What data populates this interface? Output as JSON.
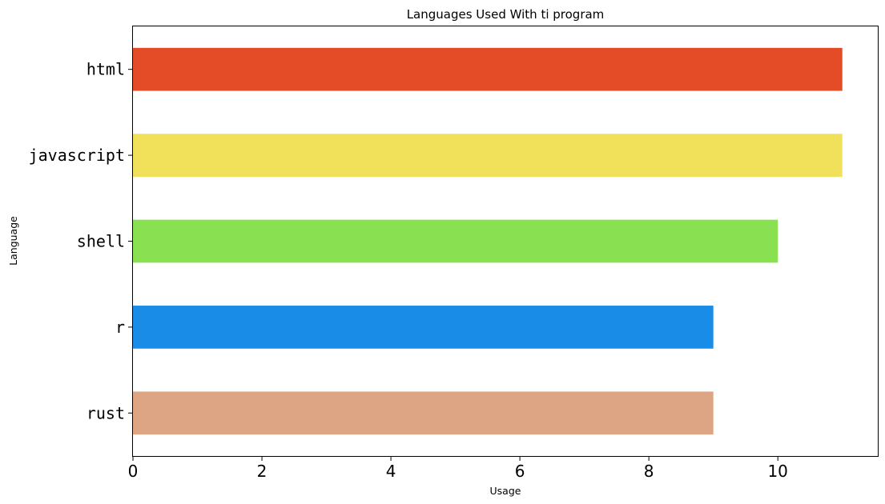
{
  "chart_data": {
    "type": "bar",
    "orientation": "horizontal",
    "title": "Languages Used With ti program",
    "xlabel": "Usage",
    "ylabel": "Language",
    "categories": [
      "html",
      "javascript",
      "shell",
      "r",
      "rust"
    ],
    "values": [
      11,
      11,
      10,
      9,
      9
    ],
    "colors": [
      "#e34c26",
      "#f1e05a",
      "#89e051",
      "#198ce7",
      "#dea584"
    ],
    "xlim": [
      0,
      11.55
    ],
    "xticks": [
      0,
      2,
      4,
      6,
      8,
      10
    ],
    "grid": false,
    "legend": "none"
  }
}
